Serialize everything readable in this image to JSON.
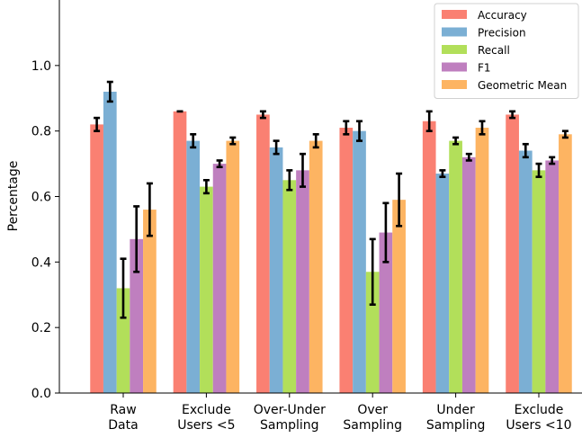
{
  "chart_data": {
    "type": "bar",
    "ylabel": "Percentage",
    "xlabel": "",
    "ylim": [
      0,
      1.2
    ],
    "yticks": [
      "0.0",
      "0.2",
      "0.4",
      "0.6",
      "0.8",
      "1.0"
    ],
    "ytick_values": [
      0.0,
      0.2,
      0.4,
      0.6,
      0.8,
      1.0
    ],
    "legend_position": "top-right",
    "grid": false,
    "categories": [
      [
        "Raw",
        "Data"
      ],
      [
        "Exclude",
        "Users <5"
      ],
      [
        "Over-Under",
        "Sampling"
      ],
      [
        "Over",
        "Sampling"
      ],
      [
        "Under",
        "Sampling"
      ],
      [
        "Exclude",
        "Users <10"
      ]
    ],
    "series": [
      {
        "name": "Accuracy",
        "color": "#fa8072",
        "values": [
          0.82,
          0.86,
          0.85,
          0.81,
          0.83,
          0.85
        ],
        "errors": [
          0.02,
          0.0,
          0.01,
          0.02,
          0.03,
          0.01
        ]
      },
      {
        "name": "Precision",
        "color": "#7bafd4",
        "values": [
          0.92,
          0.77,
          0.75,
          0.8,
          0.67,
          0.74
        ],
        "errors": [
          0.03,
          0.02,
          0.02,
          0.03,
          0.01,
          0.02
        ]
      },
      {
        "name": "Recall",
        "color": "#b2df5a",
        "values": [
          0.32,
          0.63,
          0.65,
          0.37,
          0.77,
          0.68
        ],
        "errors": [
          0.09,
          0.02,
          0.03,
          0.1,
          0.01,
          0.02
        ]
      },
      {
        "name": "F1",
        "color": "#bf7fbf",
        "values": [
          0.47,
          0.7,
          0.68,
          0.49,
          0.72,
          0.71
        ],
        "errors": [
          0.1,
          0.01,
          0.05,
          0.09,
          0.01,
          0.01
        ]
      },
      {
        "name": "Geometric Mean",
        "color": "#fdb462",
        "values": [
          0.56,
          0.77,
          0.77,
          0.59,
          0.81,
          0.79
        ],
        "errors": [
          0.08,
          0.01,
          0.02,
          0.08,
          0.02,
          0.01
        ]
      }
    ]
  }
}
